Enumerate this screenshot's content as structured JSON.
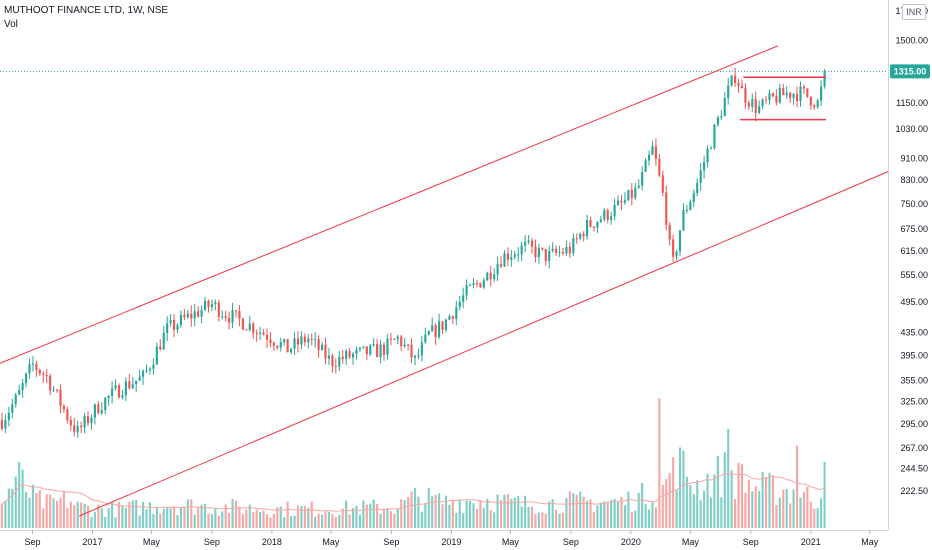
{
  "header": {
    "symbol_line": "MUTHOOT FINANCE LTD, 1W, NSE",
    "volume_label": "Vol",
    "currency_button": "INR"
  },
  "colors": {
    "up": "#26a69a",
    "down": "#ef5350",
    "up_volume": "#7fcfc7",
    "down_volume": "#f7a6a4",
    "trendline": "#f23645",
    "price_line": "#26a69a",
    "axis_text": "#131722"
  },
  "chart_data": {
    "type": "candlestick",
    "title": "MUTHOOT FINANCE LTD, 1W, NSE",
    "scale": "log",
    "y_axis": {
      "position": "right",
      "tick_labels": [
        "1700.00",
        "1500.00",
        "1315.00",
        "1150.00",
        "1030.00",
        "910.00",
        "830.00",
        "750.00",
        "675.00",
        "615.00",
        "555.00",
        "495.00",
        "435.00",
        "395.00",
        "355.00",
        "325.00",
        "295.00",
        "267.00",
        "244.50",
        "222.50"
      ],
      "ylim": [
        200,
        1720
      ]
    },
    "x_axis": {
      "tick_labels": [
        "Sep",
        "2017",
        "May",
        "Sep",
        "2018",
        "May",
        "Sep",
        "2019",
        "May",
        "Sep",
        "2020",
        "May",
        "Sep",
        "2021",
        "May"
      ],
      "xlim": [
        "2016-06-27",
        "2021-06-07"
      ]
    },
    "last_price": 1315.0,
    "last_price_label": "1315.00",
    "price_series": [
      {
        "date": "2016-07-01",
        "close": 300
      },
      {
        "date": "2016-08-01",
        "close": 330
      },
      {
        "date": "2016-09-01",
        "close": 380
      },
      {
        "date": "2016-10-01",
        "close": 360
      },
      {
        "date": "2016-11-15",
        "close": 300
      },
      {
        "date": "2016-12-01",
        "close": 285
      },
      {
        "date": "2017-01-15",
        "close": 320
      },
      {
        "date": "2017-03-01",
        "close": 345
      },
      {
        "date": "2017-04-15",
        "close": 360
      },
      {
        "date": "2017-06-01",
        "close": 440
      },
      {
        "date": "2017-07-15",
        "close": 465
      },
      {
        "date": "2017-09-01",
        "close": 490
      },
      {
        "date": "2017-10-01",
        "close": 470
      },
      {
        "date": "2017-11-15",
        "close": 450
      },
      {
        "date": "2018-01-01",
        "close": 425
      },
      {
        "date": "2018-02-01",
        "close": 405
      },
      {
        "date": "2018-03-15",
        "close": 425
      },
      {
        "date": "2018-05-01",
        "close": 385
      },
      {
        "date": "2018-06-15",
        "close": 395
      },
      {
        "date": "2018-08-15",
        "close": 405
      },
      {
        "date": "2018-09-15",
        "close": 425
      },
      {
        "date": "2018-10-20",
        "close": 385
      },
      {
        "date": "2018-11-15",
        "close": 430
      },
      {
        "date": "2018-12-15",
        "close": 450
      },
      {
        "date": "2019-02-01",
        "close": 515
      },
      {
        "date": "2019-03-15",
        "close": 555
      },
      {
        "date": "2019-04-15",
        "close": 600
      },
      {
        "date": "2019-06-01",
        "close": 625
      },
      {
        "date": "2019-07-15",
        "close": 600
      },
      {
        "date": "2019-09-01",
        "close": 620
      },
      {
        "date": "2019-10-01",
        "close": 680
      },
      {
        "date": "2019-11-15",
        "close": 720
      },
      {
        "date": "2019-12-15",
        "close": 750
      },
      {
        "date": "2020-01-15",
        "close": 800
      },
      {
        "date": "2020-02-15",
        "close": 950
      },
      {
        "date": "2020-03-10",
        "close": 750
      },
      {
        "date": "2020-03-25",
        "close": 570
      },
      {
        "date": "2020-04-15",
        "close": 710
      },
      {
        "date": "2020-05-15",
        "close": 820
      },
      {
        "date": "2020-06-15",
        "close": 1000
      },
      {
        "date": "2020-07-15",
        "close": 1200
      },
      {
        "date": "2020-08-01",
        "close": 1300
      },
      {
        "date": "2020-08-15",
        "close": 1200
      },
      {
        "date": "2020-09-15",
        "close": 1120
      },
      {
        "date": "2020-10-15",
        "close": 1170
      },
      {
        "date": "2020-11-15",
        "close": 1200
      },
      {
        "date": "2020-12-15",
        "close": 1200
      },
      {
        "date": "2021-01-15",
        "close": 1150
      },
      {
        "date": "2021-02-01",
        "close": 1315
      }
    ],
    "volume_series": [
      {
        "date": "2016-07-01",
        "v": 1.0
      },
      {
        "date": "2016-08-01",
        "v": 2.2
      },
      {
        "date": "2016-09-01",
        "v": 1.3
      },
      {
        "date": "2016-10-01",
        "v": 1.0
      },
      {
        "date": "2016-11-15",
        "v": 1.2
      },
      {
        "date": "2016-12-01",
        "v": 0.9
      },
      {
        "date": "2017-01-15",
        "v": 0.8
      },
      {
        "date": "2017-03-01",
        "v": 0.8
      },
      {
        "date": "2017-04-15",
        "v": 0.9
      },
      {
        "date": "2017-06-01",
        "v": 1.0
      },
      {
        "date": "2017-09-01",
        "v": 0.9
      },
      {
        "date": "2018-01-01",
        "v": 0.8
      },
      {
        "date": "2018-05-01",
        "v": 0.8
      },
      {
        "date": "2018-09-15",
        "v": 0.9
      },
      {
        "date": "2018-10-20",
        "v": 1.3
      },
      {
        "date": "2018-12-15",
        "v": 1.1
      },
      {
        "date": "2019-03-15",
        "v": 1.2
      },
      {
        "date": "2019-06-01",
        "v": 1.0
      },
      {
        "date": "2019-09-01",
        "v": 1.1
      },
      {
        "date": "2019-12-15",
        "v": 1.1
      },
      {
        "date": "2020-03-10",
        "v": 1.6
      },
      {
        "date": "2020-03-25",
        "v": 3.0
      },
      {
        "date": "2020-05-15",
        "v": 1.8
      },
      {
        "date": "2020-07-15",
        "v": 2.4
      },
      {
        "date": "2020-08-01",
        "v": 2.1
      },
      {
        "date": "2020-09-15",
        "v": 1.7
      },
      {
        "date": "2020-11-15",
        "v": 1.6
      },
      {
        "date": "2020-12-15",
        "v": 1.4
      },
      {
        "date": "2021-01-15",
        "v": 1.2
      },
      {
        "date": "2021-02-01",
        "v": 2.3
      }
    ],
    "volume_peaks": [
      {
        "date": "2020-03-01",
        "v": 5.5
      },
      {
        "date": "2020-03-25",
        "v": 3.0
      },
      {
        "date": "2020-07-15",
        "v": 4.2
      },
      {
        "date": "2020-08-15",
        "v": 2.7
      },
      {
        "date": "2020-12-01",
        "v": 3.5
      },
      {
        "date": "2021-02-01",
        "v": 2.8
      }
    ],
    "drawings": {
      "channel_upper": [
        {
          "date": "2016-06-27",
          "price": 382
        },
        {
          "date": "2020-10-26",
          "price": 1465
        }
      ],
      "channel_lower": [
        {
          "date": "2016-12-05",
          "price": 200
        },
        {
          "date": "2021-06-07",
          "price": 860
        }
      ],
      "range_top": [
        {
          "date": "2020-08-17",
          "price": 1283
        },
        {
          "date": "2021-02-01",
          "price": 1283
        }
      ],
      "range_bottom": [
        {
          "date": "2020-08-10",
          "price": 1072
        },
        {
          "date": "2021-02-01",
          "price": 1072
        }
      ]
    }
  }
}
